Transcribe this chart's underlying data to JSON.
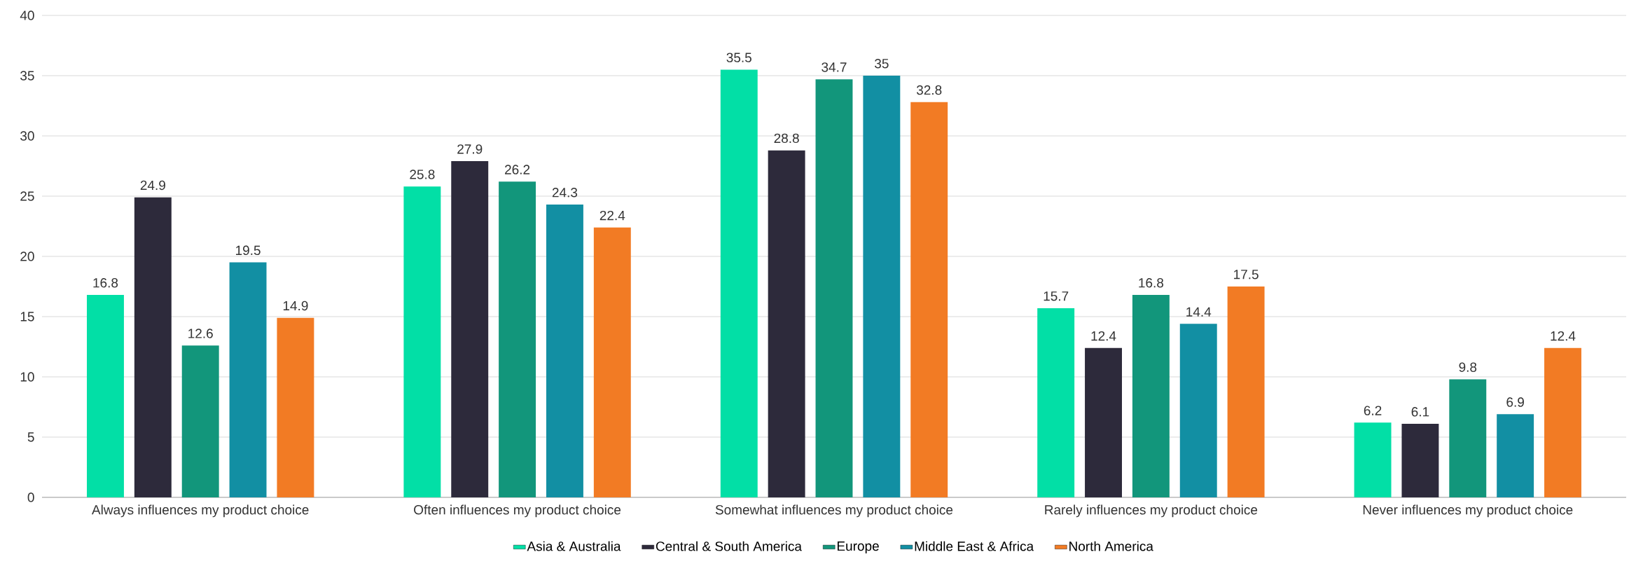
{
  "chart_data": {
    "type": "bar",
    "categories": [
      "Always influences my product choice",
      "Often influences my product choice",
      "Somewhat influences my product choice",
      "Rarely influences my product choice",
      "Never influences my product choice"
    ],
    "series": [
      {
        "name": "Asia & Australia",
        "color": "#02dfa6",
        "values": [
          16.8,
          25.8,
          35.5,
          15.7,
          6.2
        ]
      },
      {
        "name": "Central & South America",
        "color": "#2d2a3b",
        "values": [
          24.9,
          27.9,
          28.8,
          12.4,
          6.1
        ]
      },
      {
        "name": "Europe",
        "color": "#12967b",
        "values": [
          12.6,
          26.2,
          34.7,
          16.8,
          9.8
        ]
      },
      {
        "name": "Middle East & Africa",
        "color": "#128fa3",
        "values": [
          19.5,
          24.3,
          35,
          14.4,
          6.9
        ]
      },
      {
        "name": "North America",
        "color": "#f27b24",
        "values": [
          14.9,
          22.4,
          32.8,
          17.5,
          12.4
        ]
      }
    ],
    "ylim": [
      0,
      40
    ],
    "yticks": [
      0,
      5,
      10,
      15,
      20,
      25,
      30,
      35,
      40
    ],
    "grid": "y",
    "legend": "bottom",
    "data_labels": true
  }
}
